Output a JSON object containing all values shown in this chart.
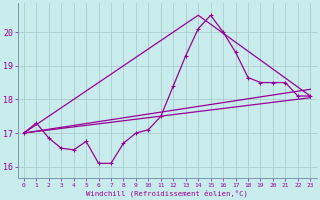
{
  "xlabel": "Windchill (Refroidissement éolien,°C)",
  "background_color": "#c8ecec",
  "line_color": "#990099",
  "grid_color": "#aacccc",
  "xlim": [
    -0.5,
    23.5
  ],
  "ylim": [
    15.65,
    20.85
  ],
  "yticks": [
    16,
    17,
    18,
    19,
    20
  ],
  "xticks": [
    0,
    1,
    2,
    3,
    4,
    5,
    6,
    7,
    8,
    9,
    10,
    11,
    12,
    13,
    14,
    15,
    16,
    17,
    18,
    19,
    20,
    21,
    22,
    23
  ],
  "main_series": {
    "x": [
      0,
      1,
      2,
      3,
      4,
      5,
      6,
      7,
      8,
      9,
      10,
      11,
      12,
      13,
      14,
      15,
      16,
      17,
      18,
      19,
      20,
      21,
      22,
      23
    ],
    "y": [
      17.0,
      17.3,
      16.85,
      16.55,
      16.5,
      16.75,
      16.1,
      16.1,
      16.7,
      17.0,
      17.1,
      17.5,
      18.4,
      19.3,
      20.1,
      20.5,
      20.0,
      19.4,
      18.65,
      18.5,
      18.5,
      18.5,
      18.1,
      18.1
    ]
  },
  "line1": {
    "x": [
      0,
      23
    ],
    "y": [
      17.0,
      18.05
    ]
  },
  "line2": {
    "x": [
      0,
      23
    ],
    "y": [
      17.0,
      18.3
    ]
  },
  "line3": {
    "x": [
      0,
      14,
      23
    ],
    "y": [
      17.0,
      20.5,
      18.1
    ]
  }
}
